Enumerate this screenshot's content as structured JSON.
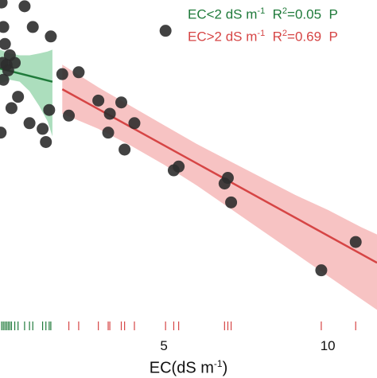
{
  "chart_data": {
    "type": "scatter",
    "xlabel": {
      "main": "EC(dS m",
      "sup": "-1",
      "close": ")"
    },
    "xlim": [
      0,
      11.5
    ],
    "ylim": [
      0,
      1
    ],
    "x_ticks": [
      {
        "value": 5,
        "label": "5"
      },
      {
        "value": 10,
        "label": "10"
      }
    ],
    "series": [
      {
        "name": "EC<2 dS m-1",
        "color": "#1f7a3a",
        "band_color": "#7fcc99",
        "legend": {
          "text": "EC<2 dS m",
          "sup1": "-1",
          "r2_text": "R",
          "sup2": "2",
          "r2_value": "=0.05",
          "p_text": "P"
        },
        "points": [
          {
            "x": 0.05,
            "y": 0.985
          },
          {
            "x": 0.1,
            "y": 0.92
          },
          {
            "x": 0.15,
            "y": 0.875
          },
          {
            "x": 0.08,
            "y": 0.825
          },
          {
            "x": 0.2,
            "y": 0.82
          },
          {
            "x": 0.3,
            "y": 0.845
          },
          {
            "x": 0.25,
            "y": 0.805
          },
          {
            "x": 0.45,
            "y": 0.825
          },
          {
            "x": 0.1,
            "y": 0.78
          },
          {
            "x": 0.55,
            "y": 0.735
          },
          {
            "x": 0.35,
            "y": 0.705
          },
          {
            "x": 0.75,
            "y": 0.975
          },
          {
            "x": 1.0,
            "y": 0.92
          },
          {
            "x": 1.55,
            "y": 0.895
          },
          {
            "x": 0.9,
            "y": 0.665
          },
          {
            "x": 1.3,
            "y": 0.65
          },
          {
            "x": 1.4,
            "y": 0.615
          },
          {
            "x": 1.5,
            "y": 0.7
          },
          {
            "x": 0.02,
            "y": 0.64
          }
        ],
        "fit": {
          "x0": 0.0,
          "y0": 0.81,
          "x1": 1.6,
          "y1": 0.775
        },
        "band": {
          "x": [
            0.0,
            0.3,
            0.6,
            0.9,
            1.2,
            1.45,
            1.6
          ],
          "upper": [
            0.86,
            0.85,
            0.845,
            0.845,
            0.85,
            0.855,
            0.86
          ],
          "lower": [
            0.77,
            0.78,
            0.775,
            0.75,
            0.71,
            0.67,
            0.63
          ]
        },
        "rug": [
          0.05,
          0.1,
          0.15,
          0.2,
          0.25,
          0.3,
          0.35,
          0.45,
          0.55,
          0.75,
          0.9,
          1.0,
          1.3,
          1.4,
          1.5,
          1.55
        ]
      },
      {
        "name": "EC>2 dS m-1",
        "color": "#d64545",
        "band_color": "#f2a3a3",
        "legend": {
          "text": "EC>2 dS m",
          "sup1": "-1",
          "r2_text": "R",
          "sup2": "2",
          "r2_value": "=0.69",
          "p_text": "P"
        },
        "points": [
          {
            "x": 1.9,
            "y": 0.795
          },
          {
            "x": 2.4,
            "y": 0.8
          },
          {
            "x": 2.1,
            "y": 0.685
          },
          {
            "x": 3.0,
            "y": 0.725
          },
          {
            "x": 3.35,
            "y": 0.69
          },
          {
            "x": 3.7,
            "y": 0.72
          },
          {
            "x": 4.1,
            "y": 0.665
          },
          {
            "x": 3.3,
            "y": 0.64
          },
          {
            "x": 3.8,
            "y": 0.595
          },
          {
            "x": 5.05,
            "y": 0.91
          },
          {
            "x": 5.3,
            "y": 0.54
          },
          {
            "x": 5.45,
            "y": 0.55
          },
          {
            "x": 6.85,
            "y": 0.505
          },
          {
            "x": 6.95,
            "y": 0.52
          },
          {
            "x": 7.05,
            "y": 0.455
          },
          {
            "x": 9.8,
            "y": 0.275
          },
          {
            "x": 10.85,
            "y": 0.35
          }
        ],
        "fit": {
          "x0": 1.9,
          "y0": 0.755,
          "x1": 11.5,
          "y1": 0.295
        },
        "band": {
          "x": [
            1.9,
            3.0,
            4.0,
            5.0,
            6.0,
            7.0,
            8.0,
            9.0,
            10.0,
            11.0,
            11.5
          ],
          "upper": [
            0.82,
            0.76,
            0.71,
            0.66,
            0.61,
            0.565,
            0.52,
            0.475,
            0.435,
            0.39,
            0.37
          ],
          "lower": [
            0.69,
            0.65,
            0.605,
            0.555,
            0.5,
            0.44,
            0.38,
            0.32,
            0.26,
            0.2,
            0.17
          ]
        },
        "rug": [
          2.1,
          2.4,
          3.0,
          3.3,
          3.35,
          3.7,
          3.8,
          4.1,
          5.05,
          5.3,
          5.45,
          6.85,
          6.95,
          7.05,
          9.8,
          10.85
        ]
      }
    ],
    "grid": false,
    "legend_position": "top-right"
  }
}
